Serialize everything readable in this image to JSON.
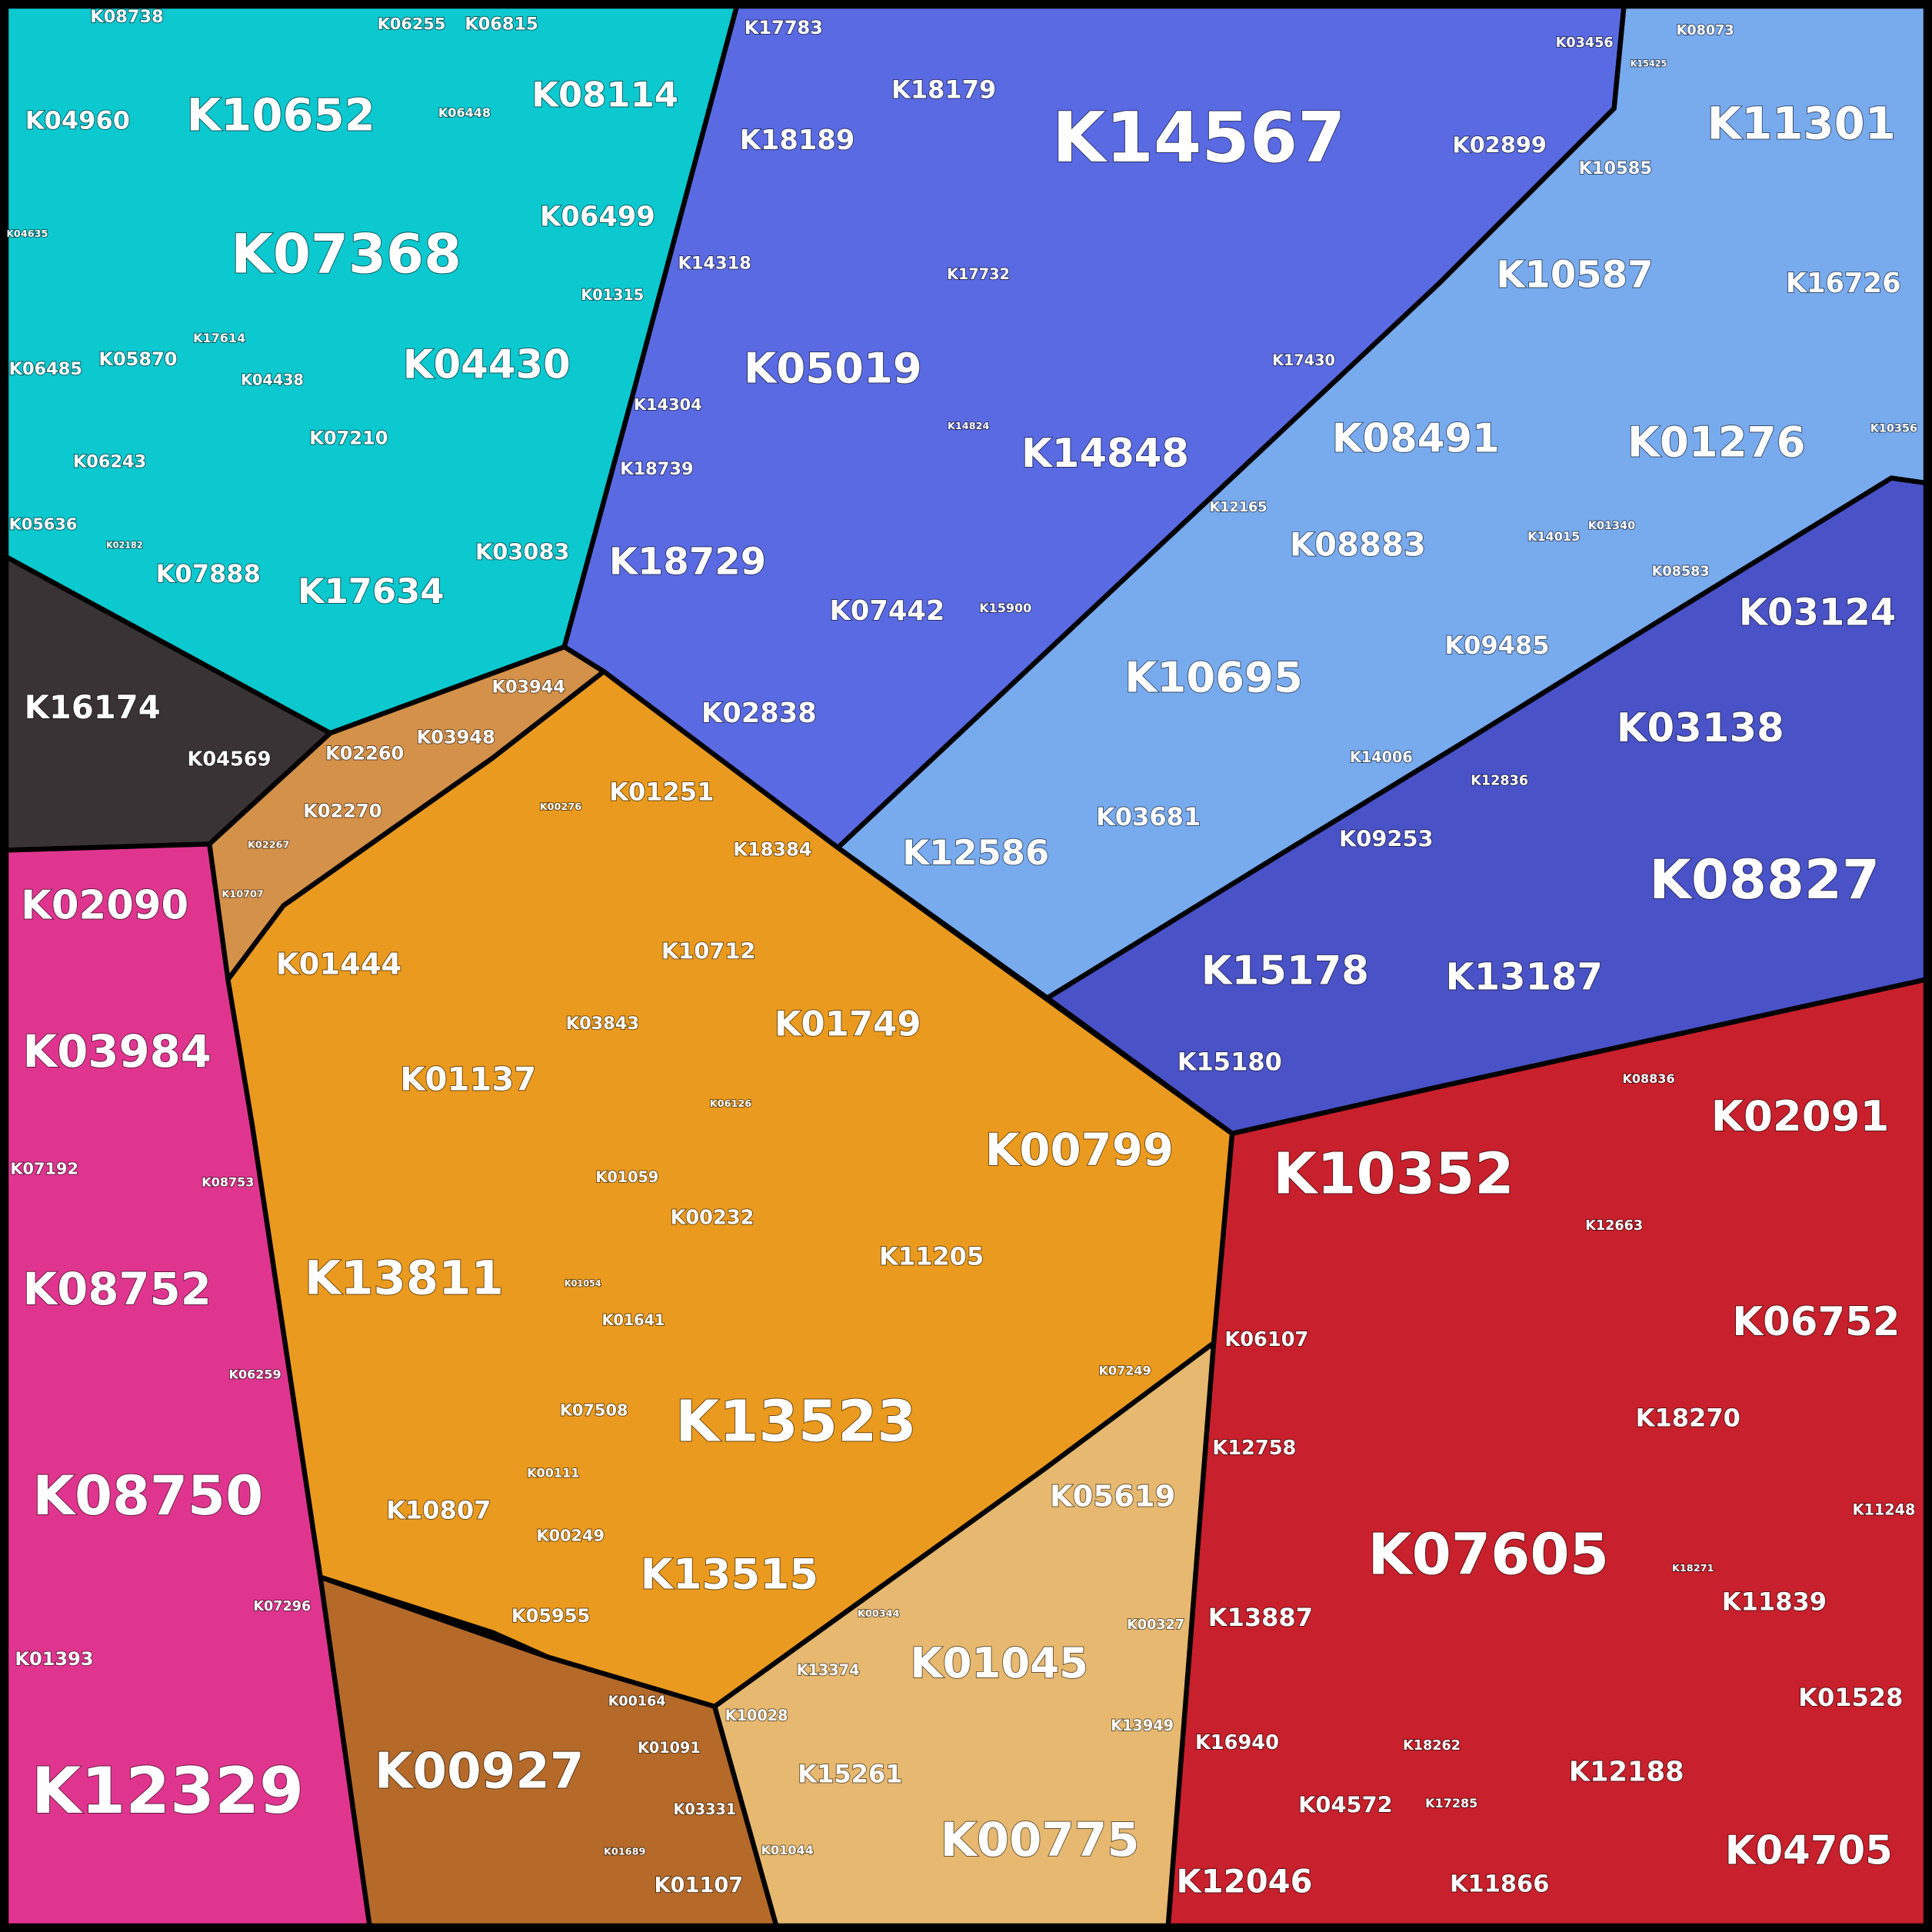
{
  "groups": [
    {
      "cells": [
        "K08738",
        "K04960",
        "K10652",
        "K07368",
        "K04635",
        "K06255",
        "K06815",
        "K06448",
        "K08114",
        "K06499",
        "K01315",
        "K17614",
        "K04438",
        "K04430",
        "K06485",
        "K05870",
        "K07210",
        "K06243",
        "K05636",
        "K02182",
        "K07888",
        "K17634",
        "K03083"
      ]
    },
    {
      "cells": [
        "K16174",
        "K04569"
      ]
    },
    {
      "cells": [
        "K02090",
        "K03984",
        "K07192",
        "K08753",
        "K08752",
        "K06259",
        "K08750",
        "K07296",
        "K01393",
        "K12329"
      ]
    },
    {
      "cells": [
        "K17783",
        "K18179",
        "K14567",
        "K03456",
        "K18189",
        "K02899",
        "K14318",
        "K17732",
        "K05019",
        "K17430",
        "K14304",
        "K14824",
        "K14848",
        "K18739",
        "K18729",
        "K07442",
        "K15900",
        "K02838"
      ]
    },
    {
      "cells": [
        "K15425",
        "K08073",
        "K11301",
        "K10585",
        "K10587",
        "K16726",
        "K08491",
        "K01276",
        "K10356",
        "K12165",
        "K08883",
        "K14015",
        "K01340",
        "K08583",
        "K09485",
        "K10695",
        "K14006",
        "K03681",
        "K12586"
      ]
    },
    {
      "cells": [
        "K03124",
        "K03138",
        "K12836",
        "K09253",
        "K08827",
        "K15178",
        "K13187",
        "K15180"
      ]
    },
    {
      "cells": [
        "K08836",
        "K02091",
        "K10352",
        "K12663",
        "K06752",
        "K06107",
        "K18270",
        "K12758",
        "K11248",
        "K07605",
        "K18271",
        "K11839",
        "K13887",
        "K01528",
        "K16940",
        "K18262",
        "K12188",
        "K04572",
        "K17285",
        "K12046",
        "K11866",
        "K04705"
      ]
    },
    {
      "cells": [
        "K00276",
        "K01251",
        "K18384",
        "K01444",
        "K10712",
        "K03843",
        "K01749",
        "K01137",
        "K06126",
        "K01059",
        "K00799",
        "K00232",
        "K13811",
        "K11205",
        "K01054",
        "K01641",
        "K07249",
        "K07508",
        "K13523",
        "K00111",
        "K10807",
        "K00249",
        "K13515",
        "K05955"
      ]
    },
    {
      "cells": [
        "K03944",
        "K02260",
        "K03948",
        "K02270",
        "K02267",
        "K10707"
      ]
    },
    {
      "cells": [
        "K05619",
        "K00344",
        "K00327",
        "K13374",
        "K01045",
        "K10028",
        "K13949",
        "K15261",
        "K01044",
        "K00775"
      ]
    },
    {
      "cells": [
        "K00927",
        "K00164",
        "K01091",
        "K03331",
        "K01689",
        "K01107"
      ]
    }
  ]
}
